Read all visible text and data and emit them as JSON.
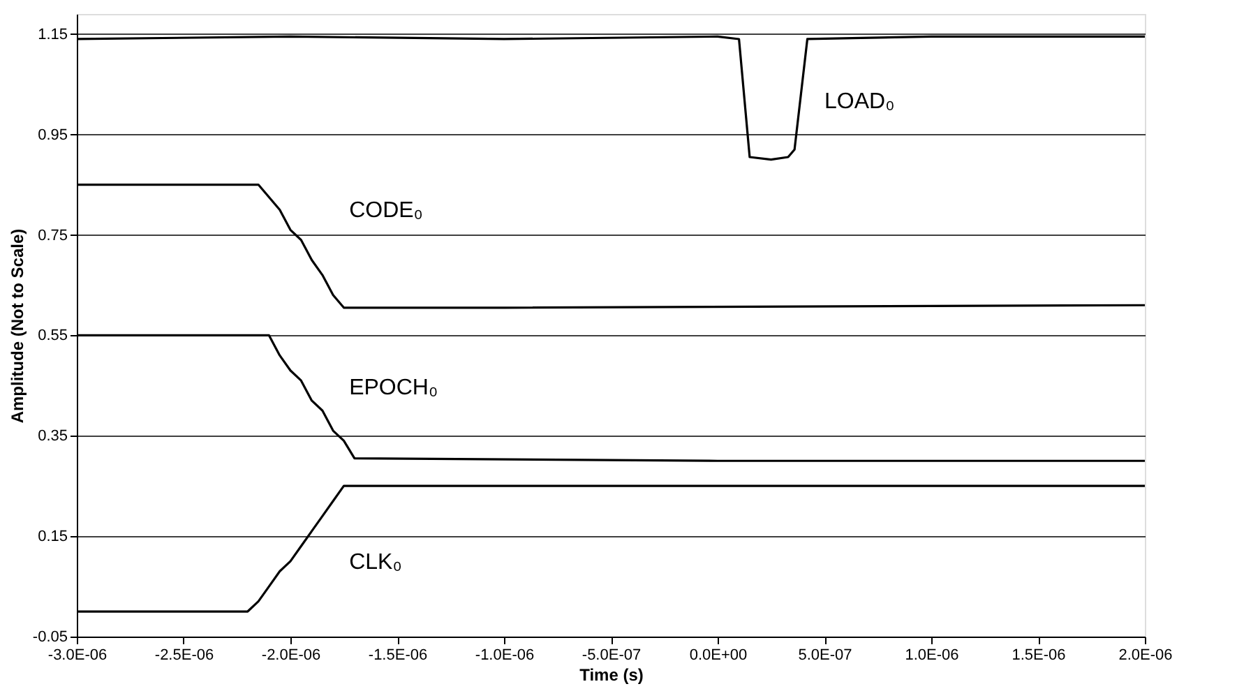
{
  "chart_data": {
    "type": "line",
    "xlabel": "Time (s)",
    "ylabel": "Amplitude (Not to Scale)",
    "xlim": [
      -3e-06,
      2e-06
    ],
    "ylim": [
      -0.05,
      1.19
    ],
    "xticks": [
      {
        "value": -3e-06,
        "label": "-3.0E-06"
      },
      {
        "value": -2.5e-06,
        "label": "-2.5E-06"
      },
      {
        "value": -2e-06,
        "label": "-2.0E-06"
      },
      {
        "value": -1.5e-06,
        "label": "-1.5E-06"
      },
      {
        "value": -1e-06,
        "label": "-1.0E-06"
      },
      {
        "value": -5e-07,
        "label": "-5.0E-07"
      },
      {
        "value": 0,
        "label": "0.0E+00"
      },
      {
        "value": 5e-07,
        "label": "5.0E-07"
      },
      {
        "value": 1e-06,
        "label": "1.0E-06"
      },
      {
        "value": 1.5e-06,
        "label": "1.5E-06"
      },
      {
        "value": 2e-06,
        "label": "2.0E-06"
      }
    ],
    "yticks": [
      {
        "value": -0.05,
        "label": "-0.05"
      },
      0.15,
      0.35,
      0.55,
      0.75,
      0.95,
      1.15
    ],
    "grid": "y",
    "marker": "none",
    "line_style": "solid",
    "series": [
      {
        "name": "LOAD₀",
        "color": "#000000",
        "x": [
          -3e-06,
          -2e-06,
          -1e-06,
          0,
          1e-07,
          1.5e-07,
          2.5e-07,
          3.3e-07,
          3.6e-07,
          4.2e-07,
          1e-06,
          2e-06
        ],
        "values": [
          1.14,
          1.145,
          1.14,
          1.145,
          1.14,
          0.905,
          0.9,
          0.905,
          0.92,
          1.14,
          1.145,
          1.145
        ]
      },
      {
        "name": "CODE₀",
        "color": "#000000",
        "x": [
          -3e-06,
          -2.15e-06,
          -2.05e-06,
          -2e-06,
          -1.95e-06,
          -1.9e-06,
          -1.85e-06,
          -1.8e-06,
          -1.75e-06,
          -1e-06,
          2e-06
        ],
        "values": [
          0.85,
          0.85,
          0.8,
          0.76,
          0.74,
          0.7,
          0.67,
          0.63,
          0.605,
          0.605,
          0.61
        ]
      },
      {
        "name": "EPOCH₀",
        "color": "#000000",
        "x": [
          -3e-06,
          -2.1e-06,
          -2.05e-06,
          -2e-06,
          -1.95e-06,
          -1.9e-06,
          -1.85e-06,
          -1.8e-06,
          -1.75e-06,
          -1.7e-06,
          0,
          2e-06
        ],
        "values": [
          0.55,
          0.55,
          0.51,
          0.48,
          0.46,
          0.42,
          0.4,
          0.36,
          0.34,
          0.305,
          0.3,
          0.3
        ]
      },
      {
        "name": "CLK₀",
        "color": "#000000",
        "x": [
          -3e-06,
          -2.2e-06,
          -2.15e-06,
          -2.1e-06,
          -2.05e-06,
          -2e-06,
          -1.95e-06,
          -1.9e-06,
          -1.85e-06,
          -1.8e-06,
          -1.75e-06,
          0,
          2e-06
        ],
        "values": [
          0.0,
          0.0,
          0.02,
          0.05,
          0.08,
          0.1,
          0.13,
          0.16,
          0.19,
          0.22,
          0.25,
          0.25,
          0.25
        ]
      }
    ]
  }
}
